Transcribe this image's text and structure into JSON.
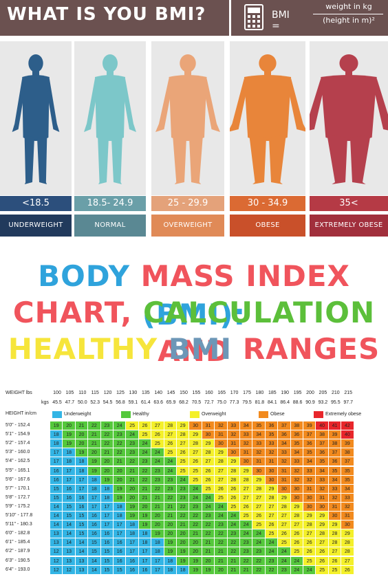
{
  "header": {
    "title": "WHAT IS YOU BMI?",
    "formula_lhs": "BMI =",
    "formula_numerator": "weight in kg",
    "formula_denominator": "(height in m)²",
    "icon": "calculator-icon"
  },
  "categories": [
    {
      "range": "<18.5",
      "label": "UNDERWEIGHT",
      "body_color": "#2d5e8a",
      "range_color": "#2c4f7c",
      "label_color": "#213a5c"
    },
    {
      "range": "18.5- 24.9",
      "label": "NORMAL",
      "body_color": "#7cc7c9",
      "range_color": "#6a9fa8",
      "label_color": "#5a8893"
    },
    {
      "range": "25 - 29.9",
      "label": "OVERWEIGHT",
      "body_color": "#eaa578",
      "range_color": "#e4a27a",
      "label_color": "#e08a57"
    },
    {
      "range": "30 - 34.9",
      "label": "OBESE",
      "body_color": "#e8853a",
      "range_color": "#db6a33",
      "label_color": "#c9502a"
    },
    {
      "range": "35<",
      "label": "EXTREMELY OBESE",
      "body_color": "#b5404d",
      "range_color": "#b53a45",
      "label_color": "#a12f3c"
    }
  ],
  "headline": {
    "line1": [
      {
        "text": "BODY ",
        "color": "#2fa3dc"
      },
      {
        "text": "MASS INDEX ",
        "color": "#f0545c"
      },
      {
        "text": "(BMI):",
        "color": "#2fa3dc"
      }
    ],
    "line2": [
      {
        "text": "CHART, ",
        "color": "#f0545c"
      },
      {
        "text": "CALCULATION ",
        "color": "#5cbf3a"
      },
      {
        "text": "AND",
        "color": "#f0545c"
      }
    ],
    "line3": [
      {
        "text": "HEALTHY ",
        "color": "#f6e53b"
      },
      {
        "text": "BMI ",
        "color": "#6d97b7"
      },
      {
        "text": "RANGES",
        "color": "#f0545c"
      }
    ]
  },
  "table": {
    "weight_label": "WEIGHT lbs",
    "kgs_label": "kgs",
    "height_label": "HEIGHT in/cm",
    "lbs": [
      "100",
      "105",
      "110",
      "115",
      "120",
      "125",
      "130",
      "135",
      "140",
      "145",
      "150",
      "155",
      "160",
      "165",
      "170",
      "175",
      "180",
      "185",
      "190",
      "195",
      "200",
      "205",
      "210",
      "215"
    ],
    "kgs": [
      "45.5",
      "47.7",
      "50.0",
      "52.3",
      "54.5",
      "56.8",
      "59.1",
      "61.4",
      "63.6",
      "65.9",
      "68.2",
      "70.5",
      "72.7",
      "75.0",
      "77.3",
      "79.5",
      "81.8",
      "84.1",
      "86.4",
      "88.6",
      "90.9",
      "93.2",
      "95.5",
      "97.7"
    ],
    "legend": [
      {
        "text": "Underweight",
        "color": "#33b5e5"
      },
      {
        "text": "Healthy",
        "color": "#55c83c"
      },
      {
        "text": "Overweight",
        "color": "#f4f02a"
      },
      {
        "text": "Obese",
        "color": "#f28a1e"
      },
      {
        "text": "Extremely obese",
        "color": "#e8262b"
      }
    ],
    "heights": [
      "5'0\" - 152.4",
      "5'1\" - 154.9",
      "5'2\" - 157.4",
      "5'3\" - 160.0",
      "5'4\" - 162.5",
      "5'5\" - 165.1",
      "5'6\" - 167.6",
      "5'7\" - 170.1",
      "5'8\" - 172.7",
      "5'9\" - 175.2",
      "5'10\" - 177.8",
      "5'11\" - 180.3",
      "6'0\" - 182.8",
      "6'1\" - 185.4",
      "6'2\" - 187.9",
      "6'3\" - 190.5",
      "6'4\" - 193.0"
    ],
    "rows": [
      [
        19,
        20,
        21,
        22,
        23,
        24,
        25,
        26,
        27,
        28,
        29,
        30,
        31,
        32,
        33,
        34,
        35,
        36,
        37,
        38,
        39,
        40,
        41,
        42
      ],
      [
        18,
        19,
        20,
        21,
        22,
        23,
        24,
        25,
        26,
        27,
        28,
        29,
        30,
        31,
        32,
        33,
        34,
        35,
        36,
        36,
        37,
        38,
        39,
        40
      ],
      [
        18,
        19,
        20,
        21,
        22,
        22,
        23,
        24,
        25,
        26,
        27,
        28,
        29,
        30,
        31,
        32,
        33,
        33,
        34,
        35,
        36,
        37,
        38,
        39
      ],
      [
        17,
        18,
        19,
        20,
        21,
        22,
        23,
        24,
        24,
        25,
        26,
        27,
        28,
        29,
        30,
        31,
        32,
        32,
        33,
        34,
        35,
        36,
        37,
        38
      ],
      [
        17,
        18,
        18,
        19,
        20,
        21,
        22,
        23,
        24,
        24,
        25,
        26,
        27,
        28,
        29,
        30,
        31,
        31,
        32,
        33,
        34,
        35,
        36,
        37
      ],
      [
        16,
        17,
        18,
        19,
        20,
        20,
        21,
        22,
        23,
        24,
        25,
        25,
        26,
        27,
        28,
        29,
        30,
        30,
        31,
        32,
        33,
        34,
        35,
        35
      ],
      [
        16,
        17,
        17,
        18,
        19,
        20,
        21,
        22,
        23,
        23,
        24,
        25,
        26,
        27,
        28,
        28,
        29,
        30,
        31,
        32,
        32,
        33,
        34,
        35
      ],
      [
        15,
        16,
        17,
        18,
        18,
        19,
        20,
        21,
        22,
        23,
        23,
        24,
        25,
        26,
        26,
        27,
        28,
        29,
        30,
        30,
        31,
        32,
        33,
        34
      ],
      [
        15,
        16,
        16,
        17,
        18,
        19,
        20,
        21,
        21,
        22,
        23,
        24,
        24,
        25,
        26,
        27,
        27,
        28,
        29,
        30,
        30,
        31,
        32,
        33
      ],
      [
        14,
        15,
        16,
        17,
        17,
        18,
        19,
        20,
        21,
        21,
        22,
        23,
        24,
        24,
        25,
        26,
        27,
        27,
        28,
        29,
        30,
        30,
        31,
        32
      ],
      [
        14,
        15,
        15,
        16,
        17,
        18,
        19,
        19,
        20,
        21,
        22,
        22,
        23,
        24,
        24,
        25,
        26,
        27,
        27,
        28,
        29,
        29,
        30,
        31
      ],
      [
        14,
        14,
        15,
        16,
        17,
        17,
        18,
        19,
        20,
        20,
        21,
        22,
        22,
        23,
        24,
        24,
        25,
        26,
        27,
        27,
        28,
        29,
        29,
        30
      ],
      [
        13,
        14,
        15,
        16,
        16,
        17,
        18,
        18,
        19,
        20,
        20,
        21,
        22,
        22,
        23,
        24,
        24,
        25,
        26,
        26,
        27,
        28,
        28,
        29
      ],
      [
        13,
        14,
        14,
        15,
        16,
        16,
        17,
        18,
        18,
        19,
        20,
        20,
        21,
        22,
        22,
        23,
        24,
        24,
        25,
        26,
        26,
        27,
        28,
        28
      ],
      [
        12,
        13,
        14,
        15,
        15,
        16,
        17,
        17,
        18,
        19,
        19,
        20,
        21,
        21,
        22,
        23,
        23,
        24,
        24,
        25,
        26,
        26,
        27,
        28
      ],
      [
        12,
        13,
        13,
        14,
        15,
        16,
        16,
        17,
        17,
        18,
        19,
        19,
        20,
        21,
        21,
        22,
        22,
        23,
        24,
        24,
        25,
        26,
        26,
        27
      ],
      [
        12,
        12,
        13,
        14,
        15,
        15,
        16,
        16,
        17,
        18,
        18,
        19,
        19,
        20,
        21,
        21,
        22,
        22,
        23,
        24,
        24,
        25,
        25,
        26
      ]
    ]
  }
}
